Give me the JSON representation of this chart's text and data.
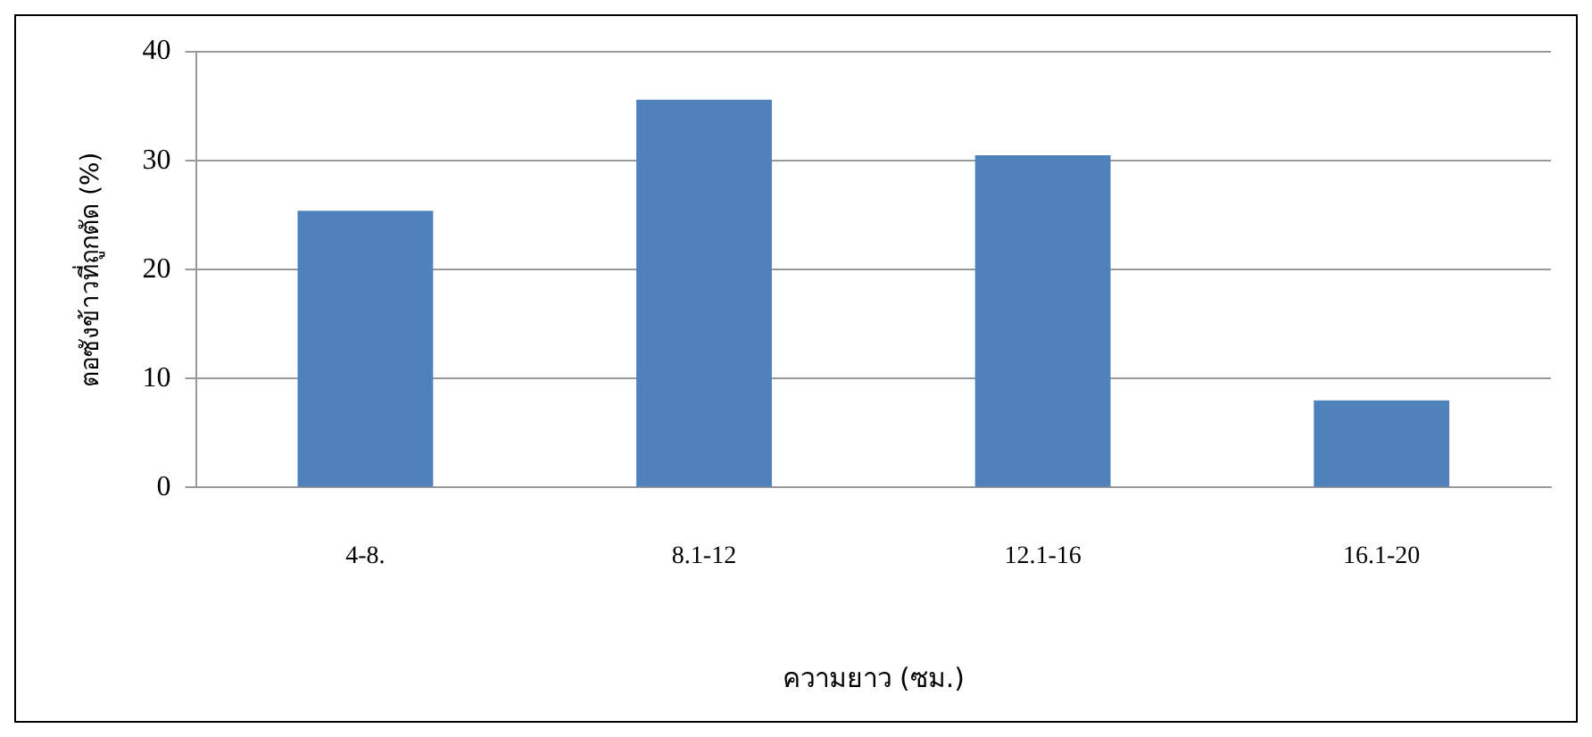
{
  "chart_data": {
    "type": "bar",
    "xlabel": "ความยาว (ซม.)",
    "ylabel": "ตอซังข้าวที่ถูกตัด (%)",
    "categories": [
      "4-8.",
      "8.1-12",
      "12.1-16",
      "16.1-20"
    ],
    "values": [
      25.4,
      35.6,
      30.5,
      8.0
    ],
    "color": "#4f81bd",
    "ylim": [
      0,
      40
    ],
    "yticks": [
      0,
      10,
      20,
      30,
      40
    ],
    "grid": "y",
    "legend": false
  }
}
